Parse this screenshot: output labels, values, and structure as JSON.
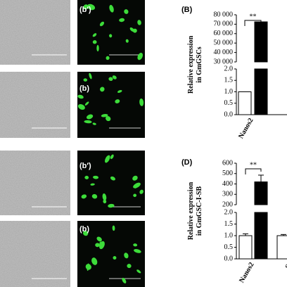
{
  "panels": {
    "image_labels": [
      "(b′)",
      "(b)",
      "(b′)",
      "(b)"
    ]
  },
  "charts": [
    {
      "type": "bar",
      "label": "(B)",
      "ylabel": [
        "Relative expression",
        "in GmGSCs"
      ],
      "significance": "**",
      "categories": [
        "Nanos2"
      ],
      "series": [
        {
          "color": "#ffffff",
          "values": [
            1.0
          ]
        },
        {
          "color": "#000000",
          "values": [
            72500
          ]
        }
      ],
      "ylim_lower": [
        0,
        2
      ],
      "ylim_upper": [
        30000,
        80000
      ],
      "yticks_lower": [
        {
          "value": 0,
          "label": "0.0"
        },
        0.5,
        {
          "value": 1,
          "label": "1.0"
        },
        1.5,
        {
          "value": 2,
          "label": "2.0"
        }
      ],
      "yticks_upper": [
        {
          "value": 30000,
          "label": "30 000"
        },
        {
          "value": 40000,
          "label": "40 000"
        },
        {
          "value": 50000,
          "label": "50 000"
        },
        {
          "value": 60000,
          "label": "60 000"
        },
        {
          "value": 70000,
          "label": "70 000"
        },
        {
          "value": 80000,
          "label": "80 000"
        }
      ]
    },
    {
      "type": "bar",
      "label": "(D)",
      "ylabel": [
        "Relative expression",
        "in GmGSC-I-SB"
      ],
      "significance": "**",
      "categories": [
        "Nanos2",
        "St"
      ],
      "series": [
        {
          "color": "#ffffff",
          "values": [
            1.0,
            1.0
          ],
          "errors": [
            0.08,
            0.05
          ]
        },
        {
          "color": "#000000",
          "values": [
            420,
            null
          ],
          "errors": [
            65,
            null
          ]
        }
      ],
      "ylim_lower": [
        0,
        2
      ],
      "ylim_upper": [
        200,
        600
      ],
      "yticks_lower": [
        {
          "value": 0,
          "label": "0.0"
        },
        0.5,
        {
          "value": 1,
          "label": "1.0"
        },
        1.5,
        {
          "value": 2,
          "label": "2.0"
        }
      ],
      "yticks_upper": [
        200,
        300,
        400,
        500,
        600
      ]
    }
  ]
}
